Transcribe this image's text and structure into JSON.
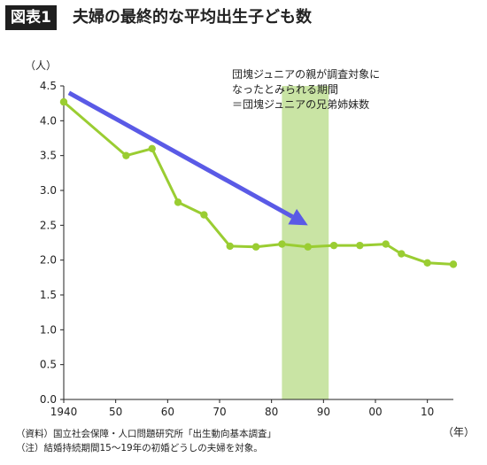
{
  "header": {
    "badge": "図表1",
    "title": "夫婦の最終的な平均出生子ども数"
  },
  "chart_data": {
    "type": "line",
    "title": "夫婦の最終的な平均出生子ども数",
    "ylabel": "（人）",
    "xlabel": "（年）",
    "ylim": [
      0,
      4.5
    ],
    "xlim": [
      1940,
      2015
    ],
    "yticks": [
      {
        "value": 0,
        "label": "0.0"
      },
      {
        "value": 0.5,
        "label": "0.5"
      },
      {
        "value": 1.0,
        "label": "1.0"
      },
      {
        "value": 1.5,
        "label": "1.5"
      },
      {
        "value": 2.0,
        "label": "2.0"
      },
      {
        "value": 2.5,
        "label": "2.5"
      },
      {
        "value": 3.0,
        "label": "3.0"
      },
      {
        "value": 3.5,
        "label": "3.5"
      },
      {
        "value": 4.0,
        "label": "4.0"
      },
      {
        "value": 4.5,
        "label": "4.5"
      }
    ],
    "xticks": [
      {
        "value": 1940,
        "label": "1940"
      },
      {
        "value": 1950,
        "label": "50"
      },
      {
        "value": 1960,
        "label": "60"
      },
      {
        "value": 1970,
        "label": "70"
      },
      {
        "value": 1980,
        "label": "80"
      },
      {
        "value": 1990,
        "label": "90"
      },
      {
        "value": 2000,
        "label": "00"
      },
      {
        "value": 2010,
        "label": "10"
      }
    ],
    "series": [
      {
        "color": "#9acd32",
        "points": [
          {
            "x": 1940,
            "y": 4.27
          },
          {
            "x": 1952,
            "y": 3.5
          },
          {
            "x": 1957,
            "y": 3.6
          },
          {
            "x": 1962,
            "y": 2.83
          },
          {
            "x": 1967,
            "y": 2.65
          },
          {
            "x": 1972,
            "y": 2.2
          },
          {
            "x": 1977,
            "y": 2.19
          },
          {
            "x": 1982,
            "y": 2.23
          },
          {
            "x": 1987,
            "y": 2.19
          },
          {
            "x": 1992,
            "y": 2.21
          },
          {
            "x": 1997,
            "y": 2.21
          },
          {
            "x": 2002,
            "y": 2.23
          },
          {
            "x": 2005,
            "y": 2.09
          },
          {
            "x": 2010,
            "y": 1.96
          },
          {
            "x": 2015,
            "y": 1.94
          }
        ]
      }
    ],
    "highlight_band": {
      "x_start": 1982,
      "x_end": 1991,
      "color": "#c9e4a4"
    },
    "arrow": {
      "from": {
        "x": 1941,
        "y": 4.4
      },
      "to": {
        "x": 1987,
        "y": 2.5
      },
      "color": "#5a5ae6"
    },
    "annotation": [
      "団塊ジュニアの親が調査対象に",
      "なったとみられる期間",
      "＝団塊ジュニアの兄弟姉妹数"
    ]
  },
  "footer": {
    "source": "（資料）国立社会保障・人口問題研究所「出生動向基本調査」",
    "note": "（注）結婚持続期間15～19年の初婚どうしの夫婦を対象。"
  },
  "colors": {
    "line": "#9acd32",
    "band": "#c9e4a4",
    "arrow": "#5a5ae6",
    "axis": "#222222"
  }
}
